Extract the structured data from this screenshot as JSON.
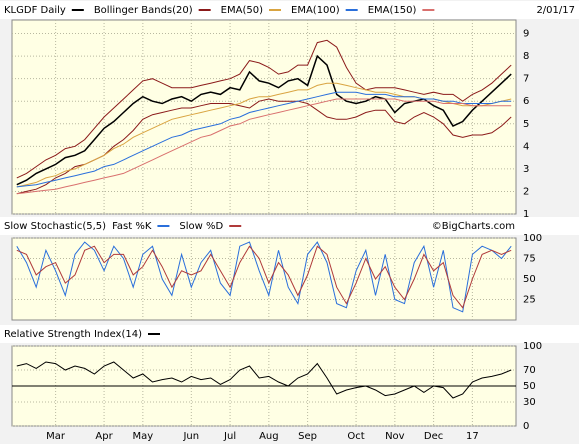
{
  "chart_data": [
    {
      "type": "line",
      "date": "2/01/17",
      "categories": [
        null,
        null,
        null,
        null,
        "Mar",
        null,
        null,
        null,
        null,
        "Apr",
        null,
        null,
        null,
        "May",
        null,
        null,
        null,
        null,
        "Jun",
        null,
        null,
        null,
        "Jul",
        null,
        null,
        null,
        "Aug",
        null,
        null,
        null,
        "Sep",
        null,
        null,
        null,
        null,
        "Oct",
        null,
        null,
        null,
        "Nov",
        null,
        null,
        null,
        "Dec",
        null,
        null,
        null,
        "17",
        null,
        null,
        null,
        null
      ],
      "ylim": [
        1,
        9.6
      ],
      "yticks": [
        1,
        2,
        3,
        4,
        5,
        6,
        7,
        8,
        9
      ],
      "grid": true,
      "series": [
        {
          "name": "KLGDF Daily",
          "color": "#000000",
          "values": [
            2.3,
            2.5,
            2.8,
            3.0,
            3.2,
            3.5,
            3.6,
            3.8,
            4.3,
            4.8,
            5.1,
            5.5,
            5.9,
            6.2,
            6.0,
            5.9,
            6.1,
            6.2,
            6.0,
            6.3,
            6.4,
            6.3,
            6.6,
            6.5,
            7.3,
            6.9,
            6.8,
            6.6,
            6.9,
            7.0,
            6.7,
            8.0,
            7.6,
            6.3,
            6.0,
            5.9,
            6.0,
            6.2,
            6.1,
            5.5,
            5.9,
            6.0,
            6.1,
            5.8,
            5.6,
            4.9,
            5.1,
            5.6,
            6.0,
            6.4,
            6.8,
            7.2
          ]
        },
        {
          "name": "Bollinger Bands(20)",
          "color": "#8b1a1a",
          "upper": [
            2.6,
            2.8,
            3.1,
            3.4,
            3.6,
            3.9,
            4.0,
            4.3,
            4.8,
            5.3,
            5.7,
            6.1,
            6.5,
            6.9,
            7.0,
            6.8,
            6.6,
            6.6,
            6.6,
            6.7,
            6.8,
            6.9,
            7.0,
            7.2,
            7.8,
            7.7,
            7.5,
            7.2,
            7.3,
            7.6,
            7.6,
            8.6,
            8.7,
            8.4,
            7.5,
            6.8,
            6.5,
            6.6,
            6.6,
            6.6,
            6.5,
            6.4,
            6.3,
            6.4,
            6.3,
            6.3,
            6.0,
            6.3,
            6.5,
            6.8,
            7.2,
            7.6
          ],
          "lower": [
            1.9,
            2.0,
            2.1,
            2.3,
            2.6,
            2.8,
            3.1,
            3.2,
            3.4,
            3.6,
            4.0,
            4.3,
            4.7,
            5.2,
            5.4,
            5.5,
            5.6,
            5.7,
            5.7,
            5.8,
            5.9,
            5.9,
            5.9,
            5.8,
            5.7,
            6.0,
            6.1,
            6.0,
            6.0,
            6.0,
            5.9,
            5.6,
            5.3,
            5.2,
            5.2,
            5.3,
            5.5,
            5.6,
            5.6,
            5.1,
            5.0,
            5.3,
            5.5,
            5.3,
            5.0,
            4.5,
            4.4,
            4.5,
            4.5,
            4.6,
            4.9,
            5.3
          ]
        },
        {
          "name": "EMA(50)",
          "color": "#d9a441",
          "values": [
            2.2,
            2.3,
            2.4,
            2.6,
            2.7,
            2.9,
            3.0,
            3.2,
            3.4,
            3.6,
            3.9,
            4.1,
            4.4,
            4.6,
            4.8,
            5.0,
            5.2,
            5.3,
            5.4,
            5.5,
            5.6,
            5.7,
            5.8,
            5.9,
            6.1,
            6.2,
            6.2,
            6.3,
            6.4,
            6.5,
            6.5,
            6.7,
            6.8,
            6.8,
            6.7,
            6.6,
            6.5,
            6.4,
            6.4,
            6.3,
            6.2,
            6.2,
            6.1,
            6.1,
            6.0,
            5.9,
            5.8,
            5.8,
            5.8,
            5.9,
            6.0,
            6.1
          ]
        },
        {
          "name": "EMA(100)",
          "color": "#2a6fdb",
          "values": [
            2.2,
            2.25,
            2.3,
            2.4,
            2.5,
            2.6,
            2.7,
            2.8,
            2.9,
            3.1,
            3.2,
            3.4,
            3.6,
            3.8,
            4.0,
            4.2,
            4.4,
            4.5,
            4.7,
            4.8,
            4.9,
            5.0,
            5.2,
            5.3,
            5.5,
            5.6,
            5.7,
            5.8,
            5.9,
            6.0,
            6.1,
            6.2,
            6.3,
            6.4,
            6.4,
            6.4,
            6.3,
            6.3,
            6.3,
            6.2,
            6.2,
            6.2,
            6.1,
            6.1,
            6.0,
            6.0,
            5.9,
            5.9,
            5.9,
            5.9,
            6.0,
            6.0
          ]
        },
        {
          "name": "EMA(150)",
          "color": "#d9706e",
          "values": [
            1.9,
            1.95,
            2.0,
            2.05,
            2.1,
            2.2,
            2.3,
            2.4,
            2.5,
            2.6,
            2.7,
            2.8,
            3.0,
            3.2,
            3.4,
            3.6,
            3.8,
            4.0,
            4.2,
            4.4,
            4.5,
            4.7,
            4.9,
            5.0,
            5.2,
            5.3,
            5.4,
            5.5,
            5.6,
            5.7,
            5.8,
            5.9,
            6.0,
            6.1,
            6.1,
            6.1,
            6.1,
            6.1,
            6.1,
            6.1,
            6.0,
            6.0,
            6.0,
            6.0,
            5.9,
            5.9,
            5.9,
            5.8,
            5.8,
            5.8,
            5.8,
            5.8
          ]
        }
      ]
    },
    {
      "type": "line",
      "title": "Slow Stochastic(5,5)",
      "credit": "©BigCharts.com",
      "ylim": [
        0,
        100
      ],
      "yticks": [
        25,
        50,
        75,
        100
      ],
      "grid": true,
      "series": [
        {
          "name": "Fast %K",
          "color": "#2a6fdb",
          "values": [
            90,
            70,
            40,
            85,
            60,
            30,
            80,
            95,
            85,
            60,
            90,
            75,
            40,
            80,
            90,
            50,
            30,
            80,
            40,
            70,
            85,
            45,
            30,
            90,
            95,
            60,
            30,
            85,
            40,
            20,
            80,
            95,
            70,
            20,
            15,
            60,
            85,
            30,
            80,
            25,
            20,
            70,
            90,
            40,
            85,
            15,
            10,
            80,
            90,
            85,
            75,
            90
          ]
        },
        {
          "name": "Slow %D",
          "color": "#b03a3a",
          "values": [
            85,
            80,
            55,
            65,
            70,
            45,
            55,
            85,
            90,
            70,
            80,
            80,
            55,
            65,
            85,
            65,
            40,
            60,
            55,
            60,
            80,
            60,
            40,
            70,
            90,
            75,
            45,
            70,
            55,
            30,
            55,
            90,
            80,
            40,
            20,
            45,
            75,
            50,
            65,
            40,
            25,
            50,
            80,
            60,
            70,
            30,
            15,
            50,
            80,
            85,
            80,
            85
          ]
        }
      ]
    },
    {
      "type": "line",
      "ylim": [
        0,
        100
      ],
      "yticks": [
        0,
        30,
        50,
        70,
        100
      ],
      "grid": true,
      "reference_line": 50,
      "series": [
        {
          "name": "Relative Strength Index(14)",
          "color": "#000000",
          "values": [
            75,
            78,
            72,
            80,
            78,
            70,
            75,
            72,
            65,
            75,
            80,
            70,
            60,
            65,
            55,
            58,
            60,
            55,
            62,
            58,
            60,
            52,
            58,
            70,
            75,
            60,
            62,
            55,
            50,
            60,
            65,
            78,
            60,
            40,
            45,
            48,
            50,
            45,
            38,
            40,
            45,
            50,
            42,
            50,
            48,
            35,
            40,
            55,
            60,
            62,
            65,
            70
          ]
        }
      ]
    }
  ]
}
